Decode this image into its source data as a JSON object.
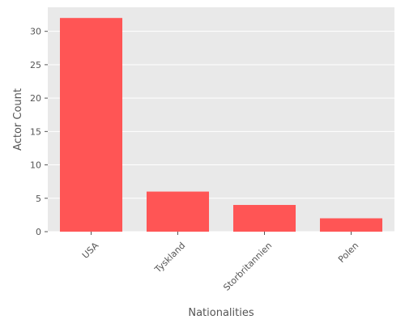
{
  "chart_data": {
    "type": "bar",
    "title": "",
    "xlabel": "Nationalities",
    "ylabel": "Actor Count",
    "categories": [
      "USA",
      "Tyskland",
      "Storbritannien",
      "Polen"
    ],
    "values": [
      32,
      6,
      4,
      2
    ],
    "ylim": [
      0,
      33.6
    ],
    "yticks": [
      0,
      5,
      10,
      15,
      20,
      25,
      30
    ],
    "grid": true,
    "legend": "none",
    "colors": {
      "bar": "#ff5555",
      "plot_background": "#e9e9e9",
      "grid": "#ffffff",
      "text": "#555555"
    }
  }
}
